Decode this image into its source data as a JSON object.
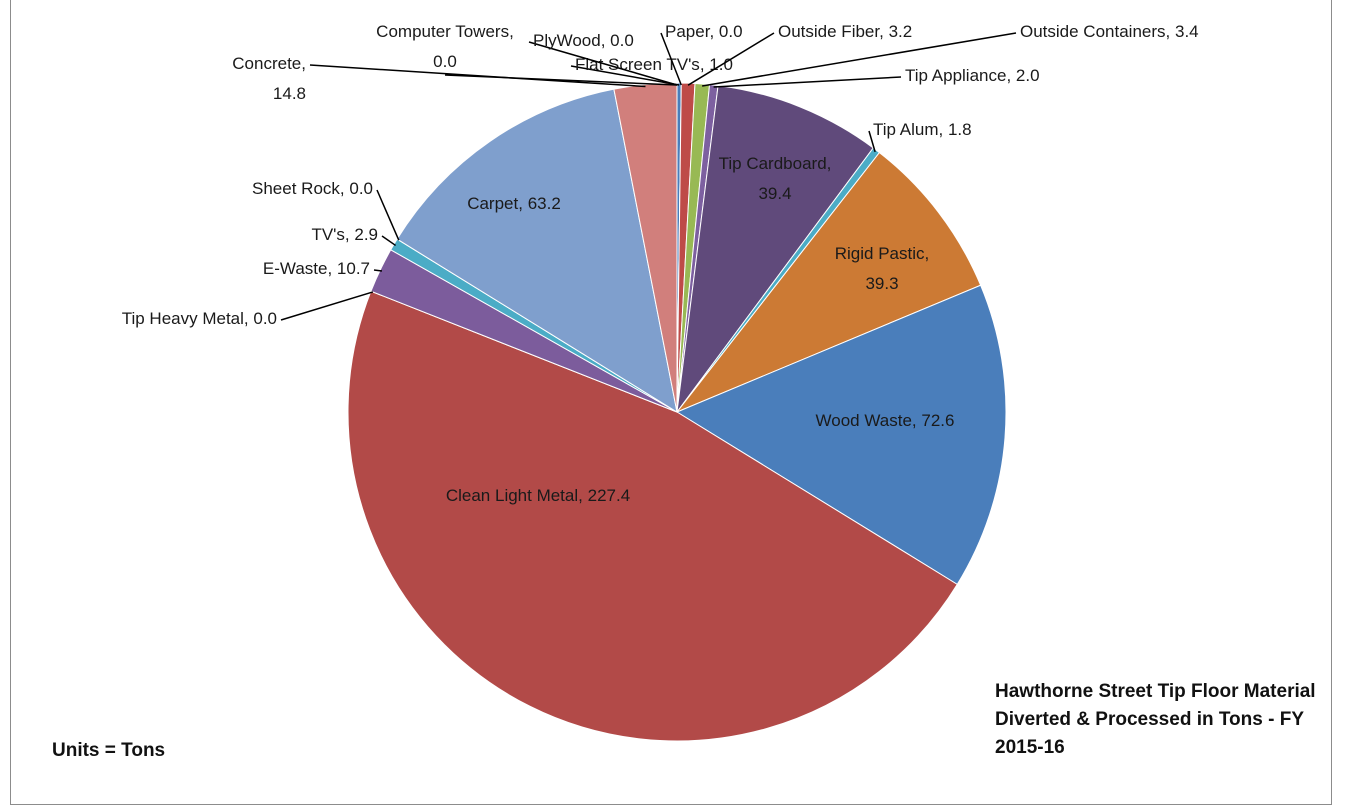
{
  "chart_data": {
    "type": "pie",
    "title": "Hawthorne Street Tip Floor Material Diverted & Processed  in Tons - FY 2015-16",
    "annotation": "Units = Tons",
    "categories": [
      "Flat Screen TV's",
      "Paper",
      "Outside Fiber",
      "Outside Containers",
      "Tip Appliance",
      "Tip Cardboard",
      "Tip Alum",
      "Rigid Pastic",
      "Wood Waste",
      "Clean Light Metal",
      "Tip Heavy Metal",
      "E-Waste",
      "TV's",
      "Sheet Rock",
      "Carpet",
      "Concrete",
      "Computer Towers",
      "PlyWood"
    ],
    "values": [
      1.0,
      0.0,
      3.2,
      3.4,
      2.0,
      39.4,
      1.8,
      39.3,
      72.6,
      227.4,
      0.0,
      10.7,
      2.9,
      0.0,
      63.2,
      14.8,
      0.0,
      0.0
    ],
    "value_labels": [
      "1.0",
      "0.0",
      "3.2",
      "3.4",
      "2.0",
      "39.4",
      "1.8",
      "39.3",
      "72.6",
      "227.4",
      "0.0",
      "10.7",
      "2.9",
      "0.0",
      "63.2",
      "14.8",
      "0.0",
      "0.0"
    ],
    "colors": [
      "#4a7ebb",
      "#be4b48",
      "#be4b48",
      "#98b954",
      "#7d60a0",
      "#604a7b",
      "#4bacc6",
      "#cc7a34",
      "#4a7ebb",
      "#b24a48",
      "#98b954",
      "#7c5c9c",
      "#4bacc6",
      "#8064a2",
      "#7f9fcd",
      "#d17f7c",
      "#a5a5a5",
      "#f79646"
    ]
  }
}
